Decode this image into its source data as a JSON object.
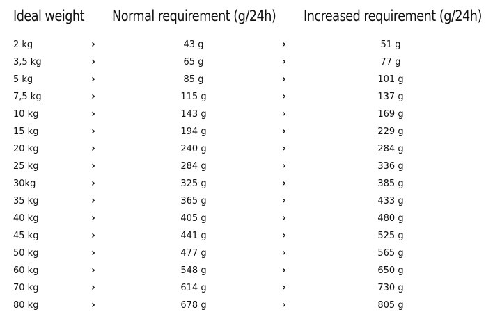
{
  "headers": {
    "weight": "Ideal weight",
    "normal": "Normal requirement (g/24h)",
    "increased": "Increased requirement (g/24h)"
  },
  "arrow_icon": "chevron-right-icon",
  "arrow_glyph": "›",
  "rows": [
    {
      "weight": "2 kg",
      "normal": "43 g",
      "increased": "51 g"
    },
    {
      "weight": "3,5 kg",
      "normal": "65 g",
      "increased": "77 g"
    },
    {
      "weight": "5 kg",
      "normal": "85 g",
      "increased": "101 g"
    },
    {
      "weight": "7,5 kg",
      "normal": "115 g",
      "increased": "137 g"
    },
    {
      "weight": "10 kg",
      "normal": "143 g",
      "increased": "169 g"
    },
    {
      "weight": "15 kg",
      "normal": "194 g",
      "increased": "229 g"
    },
    {
      "weight": "20 kg",
      "normal": "240 g",
      "increased": "284 g"
    },
    {
      "weight": "25 kg",
      "normal": "284 g",
      "increased": "336 g"
    },
    {
      "weight": "30kg",
      "normal": "325 g",
      "increased": "385 g"
    },
    {
      "weight": "35 kg",
      "normal": "365 g",
      "increased": "433 g"
    },
    {
      "weight": "40 kg",
      "normal": "405 g",
      "increased": "480 g"
    },
    {
      "weight": "45 kg",
      "normal": "441 g",
      "increased": "525 g"
    },
    {
      "weight": "50 kg",
      "normal": "477 g",
      "increased": "565 g"
    },
    {
      "weight": "60 kg",
      "normal": "548 g",
      "increased": "650 g"
    },
    {
      "weight": "70 kg",
      "normal": "614 g",
      "increased": "730 g"
    },
    {
      "weight": "80 kg",
      "normal": "678 g",
      "increased": "805 g"
    }
  ]
}
